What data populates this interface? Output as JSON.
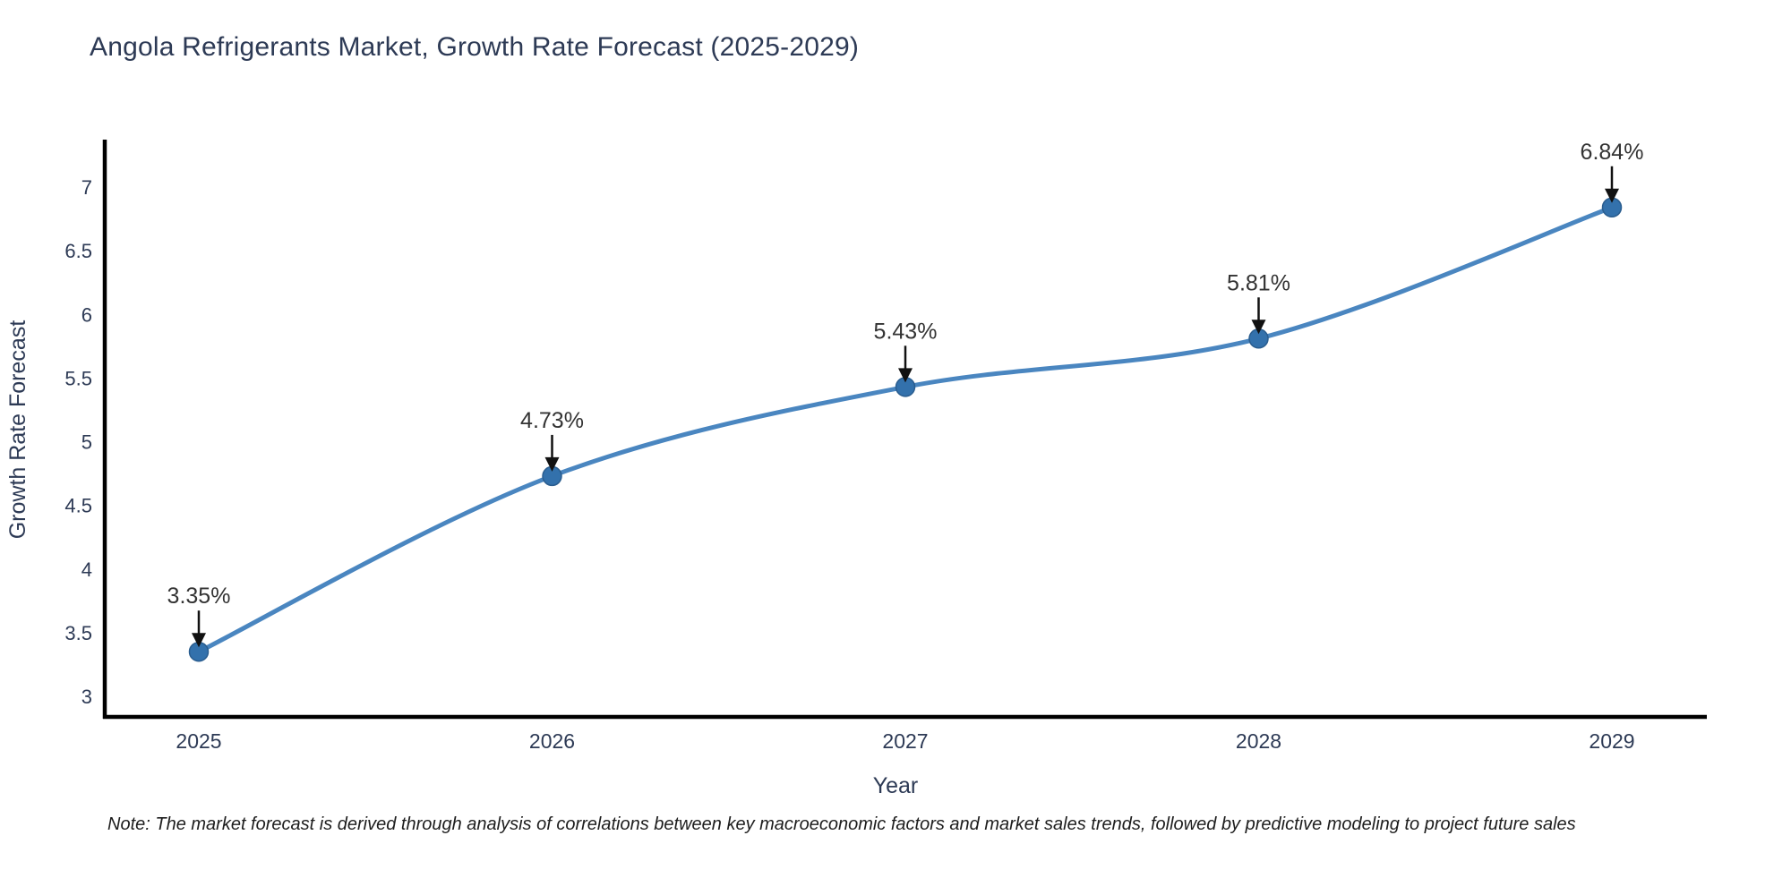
{
  "chart_data": {
    "type": "line",
    "title": "Angola Refrigerants Market, Growth Rate Forecast (2025-2029)",
    "xlabel": "Year",
    "ylabel": "Growth Rate Forecast",
    "x": [
      2025,
      2026,
      2027,
      2028,
      2029
    ],
    "y": [
      3.35,
      4.73,
      5.43,
      5.81,
      6.84
    ],
    "point_labels": [
      "3.35%",
      "4.73%",
      "5.43%",
      "5.81%",
      "6.84%"
    ],
    "xtick_labels": [
      "2025",
      "2026",
      "2027",
      "2028",
      "2029"
    ],
    "yticks": [
      3,
      3.5,
      4,
      4.5,
      5,
      5.5,
      6,
      6.5,
      7
    ],
    "ylim": [
      2.84,
      7.37
    ],
    "line_shape": "spline",
    "grid": false,
    "legend_position": "none",
    "colors": {
      "line": "#4a86c0",
      "marker": "#3371ac",
      "marker_edge": "#2a5d8f",
      "axis": "#000000",
      "tick_text": "#2d3a55",
      "annotation_text": "#333333",
      "arrow": "#111111",
      "background": "#ffffff"
    },
    "note": "Note: The market forecast is derived through analysis of correlations between key macroeconomic factors and market sales trends, followed by predictive modeling to project future sales"
  }
}
